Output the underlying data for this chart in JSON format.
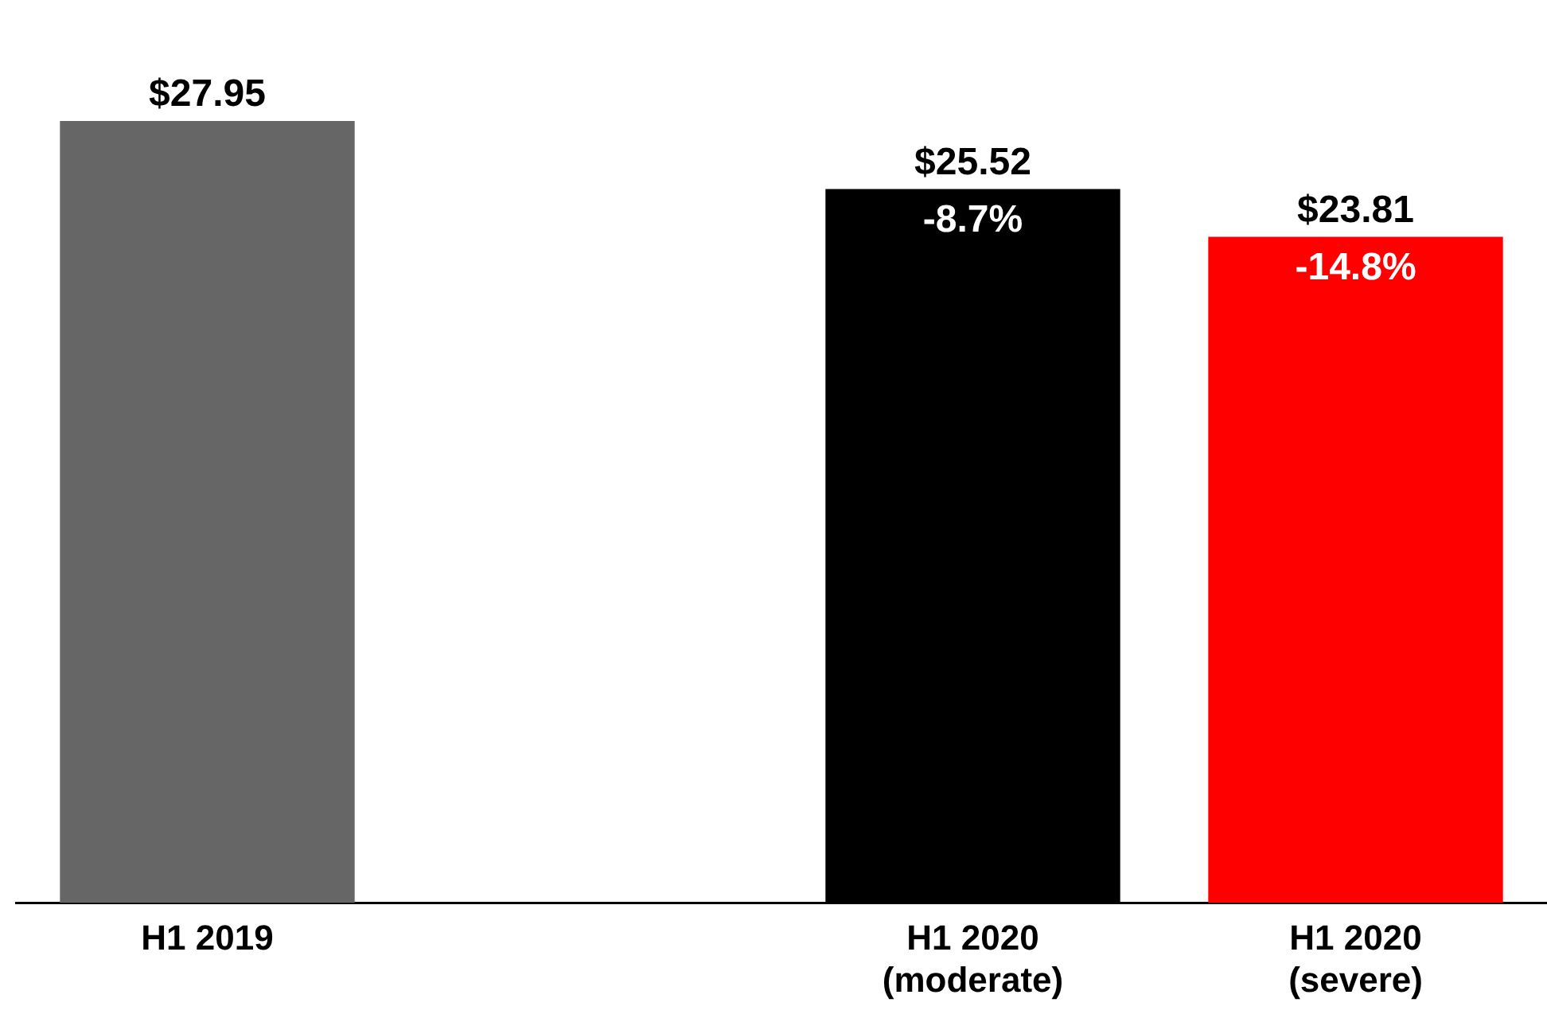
{
  "chart_data": {
    "type": "bar",
    "categories": [
      "H1 2019",
      null,
      "H1 2020\n(moderate)",
      "H1 2020\n(severe)"
    ],
    "values": [
      27.95,
      null,
      25.52,
      23.81
    ],
    "colors": [
      "#666666",
      "#000000",
      "#000000",
      "#ff0000"
    ],
    "value_labels": [
      "$27.95",
      null,
      "$25.52",
      "$23.81"
    ],
    "annotations": [
      {
        "text": "-8.7%",
        "x": "H1 2020\n(moderate)",
        "y": 25.52
      },
      {
        "text": "-14.8%",
        "x": "H1 2020\n(severe)",
        "y": 23.81
      }
    ],
    "grid": false,
    "legend": false
  }
}
